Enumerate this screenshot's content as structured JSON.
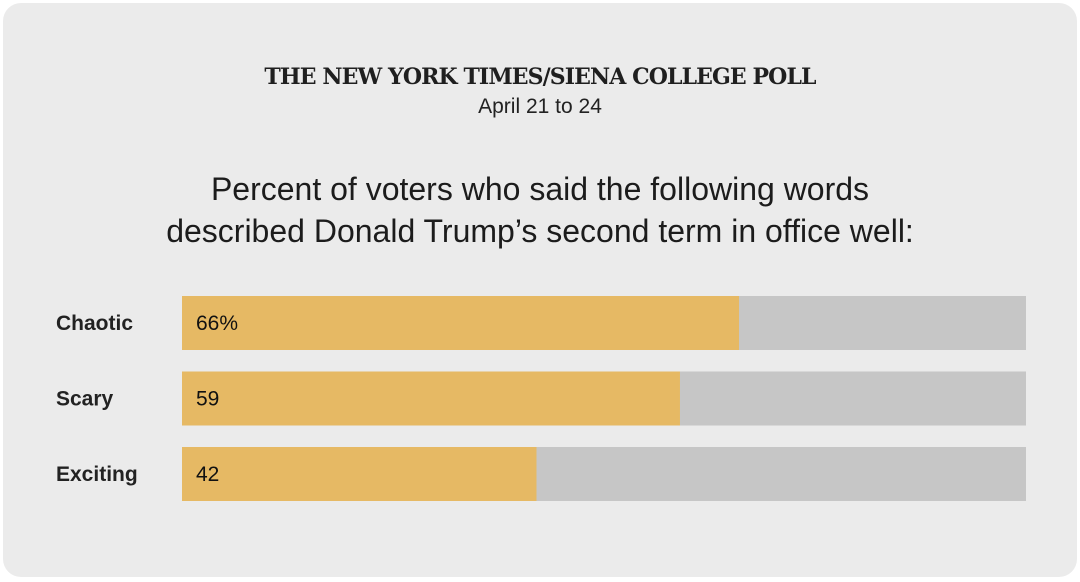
{
  "header": {
    "source": "THE NEW YORK TIMES/SIENA COLLEGE POLL",
    "date": "April 21 to 24"
  },
  "chart_data": {
    "type": "bar",
    "orientation": "horizontal",
    "title_lines": [
      "Percent of voters who said the following words",
      "described Donald Trump’s second term in office well:"
    ],
    "categories": [
      "Chaotic",
      "Scary",
      "Exciting"
    ],
    "values": [
      66,
      59,
      42
    ],
    "value_labels": [
      "66%",
      "59",
      "42"
    ],
    "xlim": [
      0,
      100
    ],
    "colors": {
      "bar": "#e6b964",
      "track": "#c6c6c6"
    }
  }
}
